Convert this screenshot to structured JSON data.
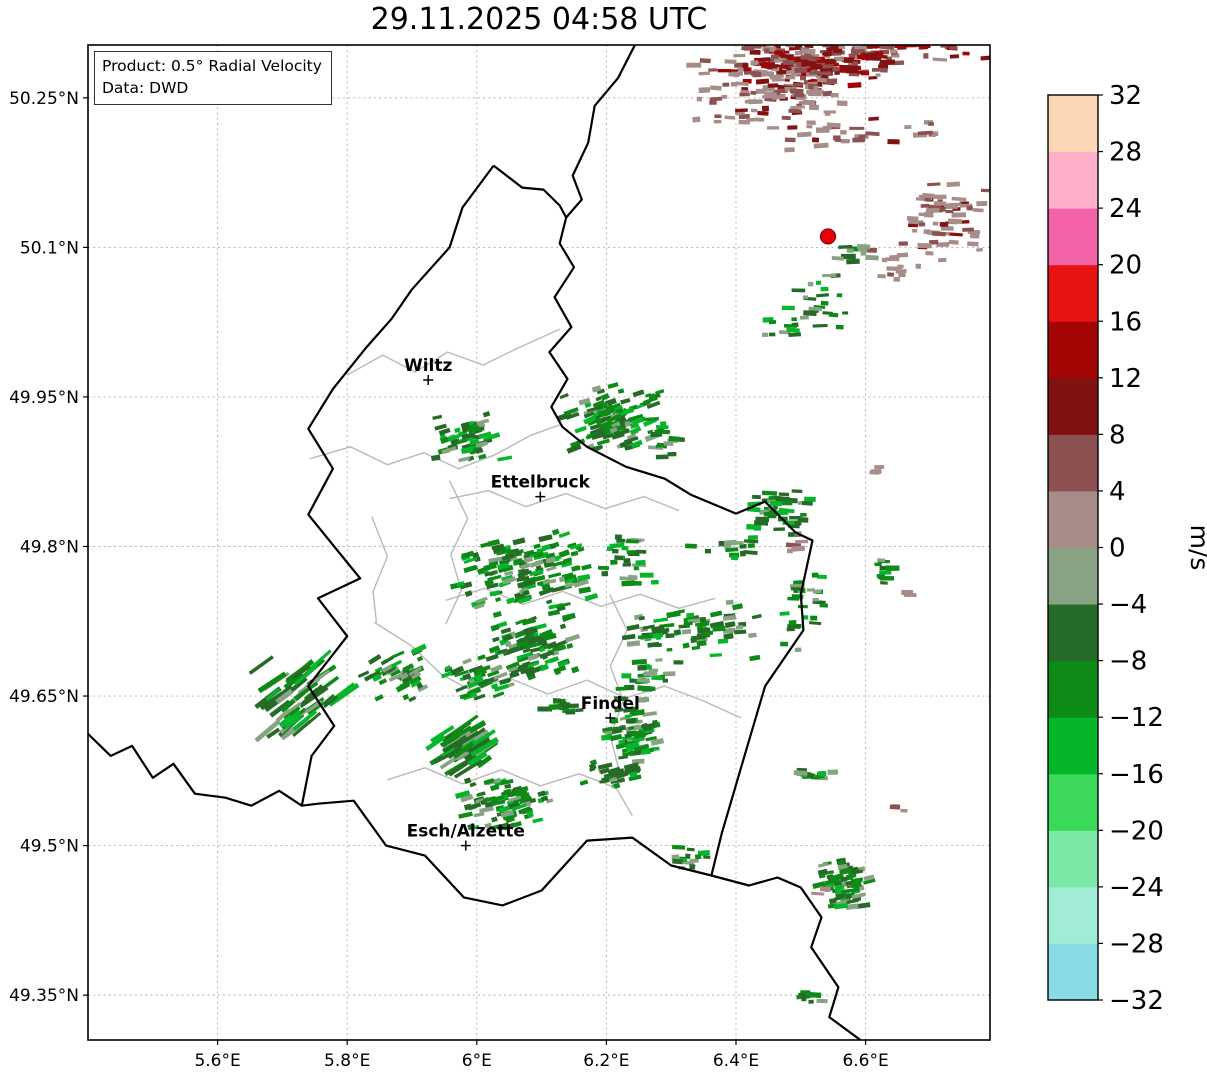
{
  "title": "29.11.2025 04:58 UTC",
  "info_box": {
    "line1": "Product: 0.5° Radial Velocity",
    "line2": "Data: DWD"
  },
  "chart_data": {
    "type": "heatmap",
    "title": "29.11.2025 04:58 UTC",
    "projection": {
      "lon_min": 5.4,
      "lon_max": 6.792,
      "lat_min": 49.305,
      "lat_max": 50.303
    },
    "x_ticks": {
      "values": [
        5.6,
        5.8,
        6.0,
        6.2,
        6.4,
        6.6
      ],
      "labels": [
        "5.6°E",
        "5.8°E",
        "6°E",
        "6.2°E",
        "6.4°E",
        "6.6°E"
      ]
    },
    "y_ticks": {
      "values": [
        50.25,
        50.1,
        49.95,
        49.8,
        49.65,
        49.5,
        49.35
      ],
      "labels": [
        "50.25°N",
        "50.1°N",
        "49.95°N",
        "49.8°N",
        "49.65°N",
        "49.5°N",
        "49.35°N"
      ]
    },
    "grid": true,
    "colorbar": {
      "label": "m/s",
      "tick_labels": [
        "32",
        "28",
        "24",
        "20",
        "16",
        "12",
        "8",
        "4",
        "0",
        "−4",
        "−8",
        "−12",
        "−16",
        "−20",
        "−24",
        "−28",
        "−32"
      ],
      "bins": [
        {
          "v": -32,
          "color": "#87DCE8"
        },
        {
          "v": -28,
          "color": "#A2EBD6"
        },
        {
          "v": -24,
          "color": "#7CE8A8"
        },
        {
          "v": -20,
          "color": "#3BD95A"
        },
        {
          "v": -16,
          "color": "#05B62A"
        },
        {
          "v": -12,
          "color": "#0E8A17"
        },
        {
          "v": -8,
          "color": "#256B27"
        },
        {
          "v": -4,
          "color": "#87A383"
        },
        {
          "v": 0,
          "color": "#A68D89"
        },
        {
          "v": 4,
          "color": "#8C5150"
        },
        {
          "v": 8,
          "color": "#821212"
        },
        {
          "v": 12,
          "color": "#A30505"
        },
        {
          "v": 16,
          "color": "#E81414"
        },
        {
          "v": 20,
          "color": "#F263A8"
        },
        {
          "v": 24,
          "color": "#FFB0C8"
        },
        {
          "v": 28,
          "color": "#FBD7B5"
        }
      ]
    },
    "radar_site": {
      "lon": 6.542,
      "lat": 50.111,
      "color": "#E8000B"
    },
    "cities": [
      {
        "name": "Wiltz",
        "lon": 5.925,
        "lat": 49.967
      },
      {
        "name": "Ettelbruck",
        "lon": 6.098,
        "lat": 49.85
      },
      {
        "name": "Findel",
        "lon": 6.206,
        "lat": 49.628
      },
      {
        "name": "Esch/Alzette",
        "lon": 5.983,
        "lat": 49.5
      }
    ],
    "echo_clusters": [
      {
        "lon": 6.606,
        "lat": 50.298,
        "w": 0.401,
        "h": 0.034,
        "n": 80,
        "v": 8
      },
      {
        "lon": 6.514,
        "lat": 50.283,
        "w": 0.309,
        "h": 0.048,
        "n": 170,
        "v": 8
      },
      {
        "lon": 6.483,
        "lat": 50.253,
        "w": 0.216,
        "h": 0.056,
        "n": 70,
        "v": 4
      },
      {
        "lon": 6.375,
        "lat": 50.256,
        "w": 0.108,
        "h": 0.08,
        "n": 24,
        "v": 4
      },
      {
        "lon": 6.56,
        "lat": 50.218,
        "w": 0.34,
        "h": 0.042,
        "n": 32,
        "v": 4
      },
      {
        "lon": 6.722,
        "lat": 50.132,
        "w": 0.154,
        "h": 0.096,
        "n": 60,
        "v": 4
      },
      {
        "lon": 6.65,
        "lat": 50.085,
        "w": 0.085,
        "h": 0.04,
        "n": 15,
        "v": 0
      },
      {
        "lon": 6.583,
        "lat": 50.095,
        "w": 0.069,
        "h": 0.03,
        "n": 10,
        "v": -4
      },
      {
        "lon": 6.527,
        "lat": 50.047,
        "w": 0.116,
        "h": 0.066,
        "n": 24,
        "v": -8
      },
      {
        "lon": 6.477,
        "lat": 50.017,
        "w": 0.069,
        "h": 0.028,
        "n": 9,
        "v": -8
      },
      {
        "lon": 6.206,
        "lat": 49.929,
        "w": 0.162,
        "h": 0.076,
        "n": 115,
        "v": -8,
        "ang": -20
      },
      {
        "lon": 6.286,
        "lat": 49.91,
        "w": 0.062,
        "h": 0.056,
        "n": 16,
        "v": -8
      },
      {
        "lon": 5.99,
        "lat": 49.909,
        "w": 0.116,
        "h": 0.05,
        "n": 55,
        "v": -8,
        "ang": -15
      },
      {
        "lon": 6.465,
        "lat": 49.834,
        "w": 0.131,
        "h": 0.056,
        "n": 44,
        "v": -8
      },
      {
        "lon": 6.49,
        "lat": 49.8,
        "w": 0.05,
        "h": 0.03,
        "n": 5,
        "v": 0
      },
      {
        "lon": 6.07,
        "lat": 49.776,
        "w": 0.224,
        "h": 0.092,
        "n": 150,
        "v": -8,
        "ang": -15
      },
      {
        "lon": 6.236,
        "lat": 49.786,
        "w": 0.096,
        "h": 0.058,
        "n": 28,
        "v": -8
      },
      {
        "lon": 6.378,
        "lat": 49.797,
        "w": 0.131,
        "h": 0.03,
        "n": 15,
        "v": -8
      },
      {
        "lon": 6.091,
        "lat": 49.7,
        "w": 0.142,
        "h": 0.07,
        "n": 95,
        "v": -8,
        "ang": -18
      },
      {
        "lon": 6.332,
        "lat": 49.716,
        "w": 0.228,
        "h": 0.062,
        "n": 75,
        "v": -8,
        "ang": -8
      },
      {
        "lon": 6.499,
        "lat": 49.738,
        "w": 0.085,
        "h": 0.096,
        "n": 26,
        "v": -8
      },
      {
        "lon": 5.727,
        "lat": 49.649,
        "w": 0.154,
        "h": 0.092,
        "n": 50,
        "v": -8,
        "ang": -38,
        "streak": true
      },
      {
        "lon": 5.881,
        "lat": 49.673,
        "w": 0.136,
        "h": 0.058,
        "n": 46,
        "v": -8,
        "ang": -28
      },
      {
        "lon": 6.008,
        "lat": 49.668,
        "w": 0.127,
        "h": 0.046,
        "n": 40,
        "v": -8,
        "ang": -20
      },
      {
        "lon": 6.128,
        "lat": 49.642,
        "w": 0.069,
        "h": 0.022,
        "n": 11,
        "v": -8
      },
      {
        "lon": 6.261,
        "lat": 49.666,
        "w": 0.111,
        "h": 0.045,
        "n": 27,
        "v": -8
      },
      {
        "lon": 6.238,
        "lat": 49.615,
        "w": 0.093,
        "h": 0.072,
        "n": 62,
        "v": -8,
        "ang": -10
      },
      {
        "lon": 5.983,
        "lat": 49.596,
        "w": 0.105,
        "h": 0.058,
        "n": 42,
        "v": -8,
        "ang": -32,
        "streak": true
      },
      {
        "lon": 6.21,
        "lat": 49.57,
        "w": 0.093,
        "h": 0.036,
        "n": 26,
        "v": -8,
        "ang": -15
      },
      {
        "lon": 6.039,
        "lat": 49.54,
        "w": 0.154,
        "h": 0.055,
        "n": 82,
        "v": -8,
        "ang": -15
      },
      {
        "lon": 6.329,
        "lat": 49.489,
        "w": 0.074,
        "h": 0.025,
        "n": 15,
        "v": -8
      },
      {
        "lon": 6.565,
        "lat": 49.462,
        "w": 0.093,
        "h": 0.062,
        "n": 64,
        "v": -8,
        "ang": -10
      },
      {
        "lon": 6.526,
        "lat": 49.574,
        "w": 0.096,
        "h": 0.018,
        "n": 16,
        "v": -8
      },
      {
        "lon": 6.622,
        "lat": 49.774,
        "w": 0.059,
        "h": 0.03,
        "n": 11,
        "v": -8
      },
      {
        "lon": 6.622,
        "lat": 49.877,
        "w": 0.03,
        "h": 0.012,
        "n": 3,
        "v": 0
      },
      {
        "lon": 6.662,
        "lat": 49.75,
        "w": 0.028,
        "h": 0.012,
        "n": 3,
        "v": 0
      },
      {
        "lon": 6.508,
        "lat": 49.348,
        "w": 0.059,
        "h": 0.016,
        "n": 10,
        "v": -8
      },
      {
        "lon": 6.654,
        "lat": 49.538,
        "w": 0.025,
        "h": 0.012,
        "n": 3,
        "v": 0
      },
      {
        "lon": 6.533,
        "lat": 49.455,
        "w": 0.022,
        "h": 0.014,
        "n": 3,
        "v": 0
      }
    ],
    "borders": {
      "country": [
        {
          "name": "luxembourg",
          "pts": [
            [
              6.026,
              50.182
            ],
            [
              6.07,
              50.16
            ],
            [
              6.103,
              50.158
            ],
            [
              6.128,
              50.142
            ],
            [
              6.138,
              50.13
            ],
            [
              6.128,
              50.104
            ],
            [
              6.15,
              50.08
            ],
            [
              6.12,
              50.05
            ],
            [
              6.146,
              50.02
            ],
            [
              6.112,
              49.995
            ],
            [
              6.14,
              49.968
            ],
            [
              6.115,
              49.94
            ],
            [
              6.132,
              49.92
            ],
            [
              6.17,
              49.9
            ],
            [
              6.23,
              49.88
            ],
            [
              6.29,
              49.868
            ],
            [
              6.33,
              49.852
            ],
            [
              6.4,
              49.833
            ],
            [
              6.445,
              49.845
            ],
            [
              6.492,
              49.814
            ],
            [
              6.518,
              49.806
            ],
            [
              6.5,
              49.752
            ],
            [
              6.504,
              49.716
            ],
            [
              6.445,
              49.66
            ],
            [
              6.42,
              49.605
            ],
            [
              6.378,
              49.512
            ],
            [
              6.362,
              49.47
            ],
            [
              6.3,
              49.48
            ],
            [
              6.24,
              49.508
            ],
            [
              6.17,
              49.505
            ],
            [
              6.1,
              49.455
            ],
            [
              6.04,
              49.44
            ],
            [
              5.98,
              49.448
            ],
            [
              5.92,
              49.49
            ],
            [
              5.86,
              49.5
            ],
            [
              5.81,
              49.545
            ],
            [
              5.755,
              49.542
            ],
            [
              5.73,
              49.54
            ],
            [
              5.745,
              49.59
            ],
            [
              5.78,
              49.62
            ],
            [
              5.74,
              49.66
            ],
            [
              5.8,
              49.71
            ],
            [
              5.755,
              49.748
            ],
            [
              5.82,
              49.768
            ],
            [
              5.78,
              49.8
            ],
            [
              5.74,
              49.832
            ],
            [
              5.778,
              49.878
            ],
            [
              5.74,
              49.918
            ],
            [
              5.778,
              49.958
            ],
            [
              5.83,
              50.0
            ],
            [
              5.868,
              50.028
            ],
            [
              5.9,
              50.058
            ],
            [
              5.958,
              50.1
            ],
            [
              5.978,
              50.14
            ],
            [
              6.026,
              50.182
            ]
          ]
        },
        {
          "name": "belgium-germany",
          "pts": [
            [
              6.244,
              50.303
            ],
            [
              6.218,
              50.27
            ],
            [
              6.182,
              50.242
            ],
            [
              6.172,
              50.205
            ],
            [
              6.148,
              50.172
            ],
            [
              6.162,
              50.148
            ],
            [
              6.138,
              50.13
            ]
          ]
        },
        {
          "name": "france-belgium",
          "pts": [
            [
              5.4,
              49.612
            ],
            [
              5.435,
              49.59
            ],
            [
              5.468,
              49.6
            ],
            [
              5.5,
              49.568
            ],
            [
              5.532,
              49.582
            ],
            [
              5.565,
              49.552
            ],
            [
              5.612,
              49.548
            ],
            [
              5.652,
              49.54
            ],
            [
              5.695,
              49.555
            ],
            [
              5.73,
              49.54
            ]
          ]
        },
        {
          "name": "france-germany",
          "pts": [
            [
              6.362,
              49.47
            ],
            [
              6.42,
              49.46
            ],
            [
              6.464,
              49.468
            ],
            [
              6.5,
              49.458
            ],
            [
              6.532,
              49.428
            ],
            [
              6.516,
              49.398
            ],
            [
              6.558,
              49.358
            ],
            [
              6.544,
              49.328
            ],
            [
              6.592,
              49.305
            ]
          ]
        }
      ],
      "district": [
        [
          [
            5.8,
            49.972
          ],
          [
            5.855,
            49.992
          ],
          [
            5.905,
            49.975
          ],
          [
            5.955,
            49.995
          ],
          [
            6.01,
            49.982
          ],
          [
            6.06,
            49.998
          ],
          [
            6.128,
            50.018
          ]
        ],
        [
          [
            5.742,
            49.888
          ],
          [
            5.805,
            49.9
          ],
          [
            5.862,
            49.882
          ],
          [
            5.918,
            49.894
          ],
          [
            5.972,
            49.878
          ],
          [
            6.028,
            49.892
          ],
          [
            6.085,
            49.912
          ],
          [
            6.128,
            49.922
          ]
        ],
        [
          [
            5.958,
            49.866
          ],
          [
            5.986,
            49.828
          ],
          [
            5.96,
            49.792
          ],
          [
            5.976,
            49.756
          ],
          [
            5.952,
            49.722
          ]
        ],
        [
          [
            5.958,
            49.848
          ],
          [
            6.018,
            49.856
          ],
          [
            6.076,
            49.84
          ],
          [
            6.138,
            49.853
          ],
          [
            6.198,
            49.838
          ],
          [
            6.258,
            49.85
          ],
          [
            6.312,
            49.836
          ]
        ],
        [
          [
            5.952,
            49.746
          ],
          [
            6.012,
            49.758
          ],
          [
            6.072,
            49.742
          ],
          [
            6.132,
            49.755
          ],
          [
            6.192,
            49.74
          ],
          [
            6.252,
            49.752
          ],
          [
            6.312,
            49.738
          ],
          [
            6.368,
            49.748
          ]
        ],
        [
          [
            6.205,
            49.752
          ],
          [
            6.232,
            49.716
          ],
          [
            6.206,
            49.68
          ],
          [
            6.226,
            49.645
          ],
          [
            6.206,
            49.61
          ],
          [
            6.22,
            49.574
          ]
        ],
        [
          [
            5.842,
            49.724
          ],
          [
            5.9,
            49.7
          ],
          [
            5.945,
            49.672
          ],
          [
            5.99,
            49.656
          ],
          [
            6.05,
            49.668
          ],
          [
            6.11,
            49.652
          ],
          [
            6.17,
            49.666
          ],
          [
            6.23,
            49.648
          ],
          [
            6.29,
            49.66
          ],
          [
            6.35,
            49.645
          ],
          [
            6.408,
            49.628
          ]
        ],
        [
          [
            5.862,
            49.566
          ],
          [
            5.92,
            49.578
          ],
          [
            5.978,
            49.562
          ],
          [
            6.038,
            49.576
          ],
          [
            6.098,
            49.56
          ],
          [
            6.158,
            49.572
          ],
          [
            6.215,
            49.558
          ],
          [
            6.24,
            49.53
          ]
        ],
        [
          [
            5.838,
            49.83
          ],
          [
            5.862,
            49.79
          ],
          [
            5.84,
            49.755
          ],
          [
            5.845,
            49.724
          ]
        ]
      ]
    }
  }
}
